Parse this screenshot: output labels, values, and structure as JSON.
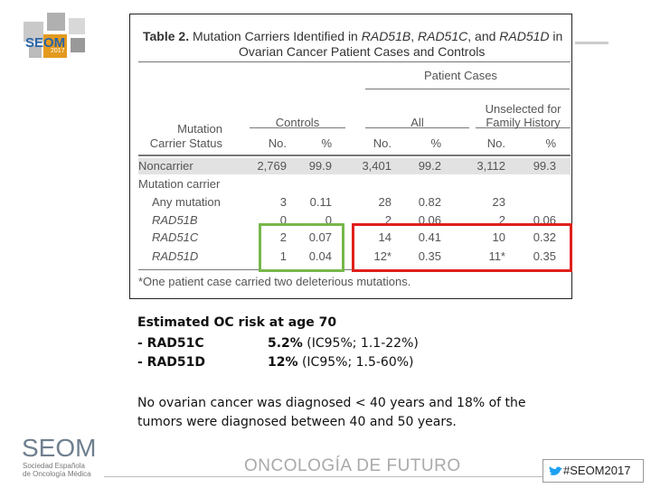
{
  "logo": {
    "name": "SEOM",
    "year": "2017"
  },
  "table": {
    "title_label": "Table 2.",
    "title_parts": [
      {
        "text": "Mutation Carriers Identified in ",
        "italic": false
      },
      {
        "text": "RAD51B",
        "italic": true
      },
      {
        "text": ", ",
        "italic": false
      },
      {
        "text": "RAD51C",
        "italic": true
      },
      {
        "text": ", and ",
        "italic": false
      },
      {
        "text": "RAD51D",
        "italic": true
      },
      {
        "text": " in",
        "italic": false
      }
    ],
    "title_line2": "Ovarian Cancer Patient Cases and Controls",
    "group_header": "Patient Cases",
    "column_groups": [
      [
        "Controls"
      ],
      [
        "All"
      ],
      [
        "Unselected for",
        "Family History"
      ]
    ],
    "row_header": [
      "Mutation",
      "Carrier Status"
    ],
    "subheaders": [
      "No.",
      "%",
      "No.",
      "%",
      "No.",
      "%"
    ],
    "rows": [
      {
        "label": "Noncarrier",
        "shaded": true,
        "cells": [
          "2,769",
          "99.9",
          "3,401",
          "99.2",
          "3,112",
          "99.3"
        ]
      },
      {
        "label": "Mutation carrier"
      },
      {
        "label": "Any mutation",
        "indent": true,
        "cells": [
          "3",
          "0.11",
          "28",
          "0.82",
          "23",
          null
        ]
      },
      {
        "label": "RAD51B",
        "indent": true,
        "italic": true,
        "cells": [
          "0",
          "0",
          "2",
          "0.06",
          "2",
          "0.06"
        ]
      },
      {
        "label": "RAD51C",
        "indent": true,
        "italic": true,
        "cells": [
          "2",
          "0.07",
          "14",
          "0.41",
          "10",
          "0.32"
        ]
      },
      {
        "label": "RAD51D",
        "indent": true,
        "italic": true,
        "cells": [
          "1",
          "0.04",
          "12*",
          "0.35",
          "11*",
          "0.35"
        ]
      }
    ],
    "footnote": "*One patient case carried two deleterious mutations."
  },
  "summary": {
    "heading": "Estimated OC risk at age 70",
    "lines": [
      {
        "gene": "- RAD51C",
        "estimate": "5.2%",
        "ci": "(IC95%; 1.1-22%)"
      },
      {
        "gene": "- RAD51D",
        "estimate": "12%",
        "ci": "(IC95%; 1.5-60%)"
      }
    ],
    "note": "No ovarian cancer was diagnosed < 40 years and 18% of the tumors were diagnosed between 40 and 50 years."
  },
  "footer": {
    "logo": "SEOM",
    "society": [
      "Sociedad Española",
      "de Oncología Médica"
    ],
    "slogan": "ONCOLOGÍA DE FUTURO",
    "hashtag": "#SEOM2017"
  }
}
